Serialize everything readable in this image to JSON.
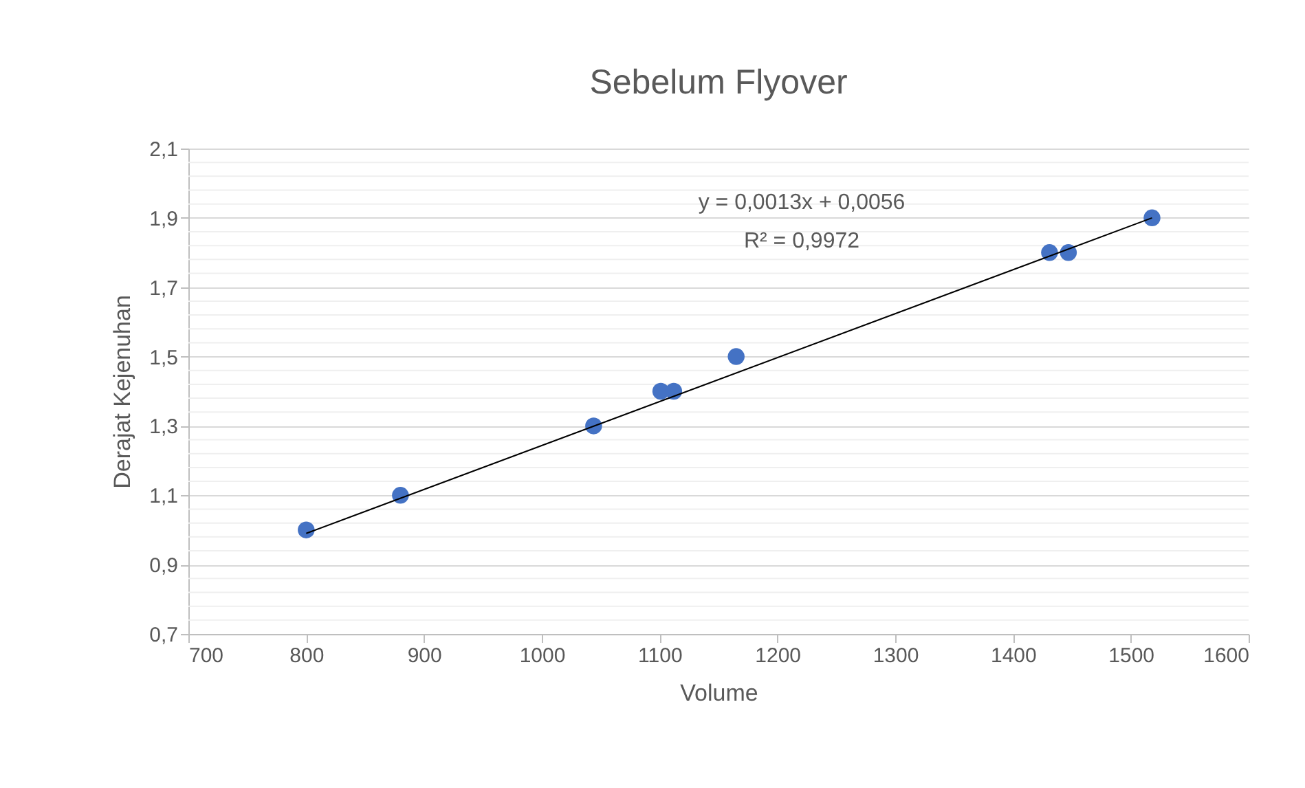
{
  "chart_data": {
    "type": "scatter",
    "title": "Sebelum Flyover",
    "xlabel": "Volume",
    "ylabel": "Derajat Kejenuhan",
    "series": [
      {
        "color": "#4472c4",
        "x": [
          800,
          880,
          1044,
          1101,
          1112,
          1165,
          1431,
          1447,
          1518
        ],
        "values": [
          1.0,
          1.1,
          1.3,
          1.4,
          1.4,
          1.5,
          1.8,
          1.8,
          1.9
        ]
      },
      {
        "type": "line",
        "color": "#000000",
        "marker": "none",
        "line_style": "solid",
        "x": [
          800,
          1518
        ],
        "values": [
          0.99,
          1.9
        ]
      }
    ],
    "annotations": [
      "y = 0,0013x + 0,0056",
      "R² = 0,9972"
    ],
    "marker": "circle",
    "grid": "y",
    "xlim": [
      700,
      1600
    ],
    "xticks": [
      700,
      800,
      900,
      1000,
      1100,
      1200,
      1300,
      1400,
      1500,
      1600
    ],
    "ylim": [
      0.7,
      2.1
    ],
    "yticks": [
      {
        "value": 0.7,
        "label": "0,7"
      },
      {
        "value": 0.74,
        "label": null
      },
      {
        "value": 0.78,
        "label": null
      },
      {
        "value": 0.82,
        "label": null
      },
      {
        "value": 0.86,
        "label": null
      },
      {
        "value": 0.9,
        "label": "0,9"
      },
      {
        "value": 0.94,
        "label": null
      },
      {
        "value": 0.98,
        "label": null
      },
      {
        "value": 1.02,
        "label": null
      },
      {
        "value": 1.06,
        "label": null
      },
      {
        "value": 1.1,
        "label": "1,1"
      },
      {
        "value": 1.14,
        "label": null
      },
      {
        "value": 1.18,
        "label": null
      },
      {
        "value": 1.22,
        "label": null
      },
      {
        "value": 1.26,
        "label": null
      },
      {
        "value": 1.3,
        "label": "1,3"
      },
      {
        "value": 1.34,
        "label": null
      },
      {
        "value": 1.38,
        "label": null
      },
      {
        "value": 1.42,
        "label": null
      },
      {
        "value": 1.46,
        "label": null
      },
      {
        "value": 1.5,
        "label": "1,5"
      },
      {
        "value": 1.54,
        "label": null
      },
      {
        "value": 1.58,
        "label": null
      },
      {
        "value": 1.62,
        "label": null
      },
      {
        "value": 1.66,
        "label": null
      },
      {
        "value": 1.7,
        "label": "1,7"
      },
      {
        "value": 1.74,
        "label": null
      },
      {
        "value": 1.78,
        "label": null
      },
      {
        "value": 1.82,
        "label": null
      },
      {
        "value": 1.86,
        "label": null
      },
      {
        "value": 1.9,
        "label": "1,9"
      },
      {
        "value": 1.94,
        "label": null
      },
      {
        "value": 1.98,
        "label": null
      },
      {
        "value": 2.02,
        "label": null
      },
      {
        "value": 2.06,
        "label": null
      },
      {
        "value": 2.1,
        "label": "2,1"
      }
    ]
  }
}
